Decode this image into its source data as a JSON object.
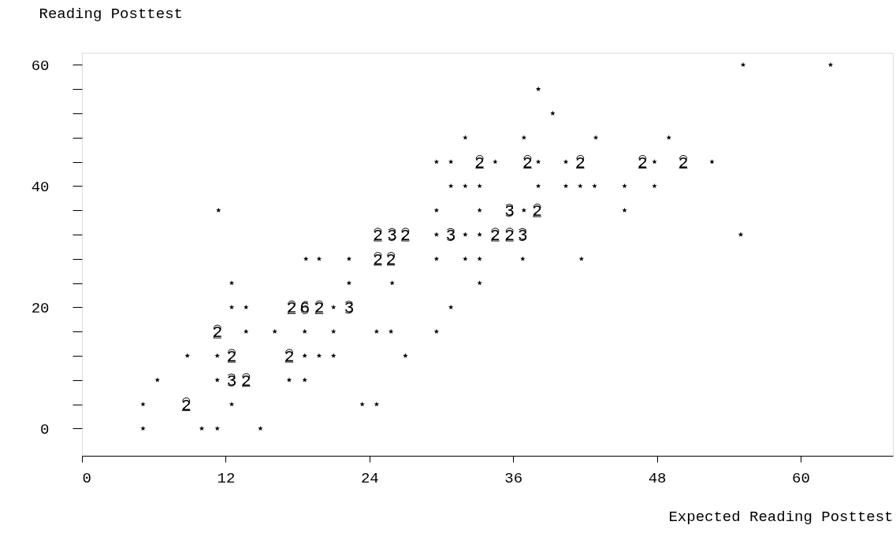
{
  "chart_data": {
    "type": "scatter",
    "xlabel": "Expected Reading Posttest",
    "ylabel": "Reading Posttest",
    "x": [
      55.2,
      62.5,
      38.1,
      39.3,
      32.0,
      36.9,
      42.9,
      49.0,
      29.6,
      30.8,
      34.5,
      38.1,
      40.4,
      47.8,
      52.6,
      30.8,
      32.0,
      33.2,
      38.1,
      40.4,
      41.6,
      42.8,
      45.3,
      47.8,
      11.4,
      29.6,
      33.2,
      36.9,
      45.3,
      29.6,
      32.0,
      33.2,
      55.0,
      18.7,
      19.8,
      22.3,
      29.6,
      32.0,
      33.2,
      36.8,
      41.7,
      12.5,
      22.3,
      25.9,
      33.2,
      12.5,
      13.7,
      21.0,
      30.8,
      13.7,
      16.1,
      18.6,
      21.0,
      24.6,
      25.8,
      29.6,
      8.8,
      11.3,
      18.6,
      19.8,
      21.0,
      27.0,
      6.3,
      11.3,
      17.3,
      18.6,
      5.1,
      12.5,
      23.4,
      24.6,
      5.1,
      10.0,
      11.3,
      14.9
    ],
    "series": [
      {
        "color": "#000000",
        "values": [
          60,
          60,
          56,
          52,
          48,
          48,
          48,
          48,
          44,
          44,
          44,
          44,
          44,
          44,
          44,
          40,
          40,
          40,
          40,
          40,
          40,
          40,
          40,
          40,
          36,
          36,
          36,
          36,
          36,
          32,
          32,
          32,
          32,
          28,
          28,
          28,
          28,
          28,
          28,
          28,
          28,
          24,
          24,
          24,
          24,
          20,
          20,
          20,
          20,
          16,
          16,
          16,
          16,
          16,
          16,
          16,
          12,
          12,
          12,
          12,
          12,
          12,
          8,
          8,
          8,
          8,
          4,
          4,
          4,
          4,
          0,
          0,
          0,
          0
        ]
      },
      {
        "color": "#000000",
        "marker": "cross",
        "x": [
          33.2,
          37.2,
          41.6,
          46.8,
          50.2,
          35.7,
          38.0,
          24.7,
          25.9,
          27.0,
          30.8,
          34.5,
          35.7,
          36.8,
          24.7,
          25.8,
          17.5,
          18.6,
          19.8,
          22.3,
          11.3,
          12.5,
          17.3,
          12.5,
          13.7,
          8.7
        ],
        "values": [
          44,
          44,
          44,
          44,
          44,
          36,
          36,
          32,
          32,
          32,
          32,
          32,
          32,
          32,
          28,
          28,
          20,
          20,
          20,
          20,
          16,
          12,
          12,
          8,
          8,
          4
        ]
      }
    ],
    "annotations": [
      {
        "text": "2",
        "x": 33.2,
        "y": 44
      },
      {
        "text": "2",
        "x": 37.2,
        "y": 44
      },
      {
        "text": "2",
        "x": 41.6,
        "y": 44
      },
      {
        "text": "2",
        "x": 46.8,
        "y": 44
      },
      {
        "text": "2",
        "x": 50.2,
        "y": 44
      },
      {
        "text": "3",
        "x": 35.7,
        "y": 36
      },
      {
        "text": "2",
        "x": 38.0,
        "y": 36
      },
      {
        "text": "2",
        "x": 24.7,
        "y": 32
      },
      {
        "text": "3",
        "x": 25.9,
        "y": 32
      },
      {
        "text": "2",
        "x": 27.0,
        "y": 32
      },
      {
        "text": "3",
        "x": 30.8,
        "y": 32
      },
      {
        "text": "2",
        "x": 34.5,
        "y": 32
      },
      {
        "text": "2",
        "x": 35.7,
        "y": 32
      },
      {
        "text": "3",
        "x": 36.8,
        "y": 32
      },
      {
        "text": "2",
        "x": 24.7,
        "y": 28
      },
      {
        "text": "2",
        "x": 25.8,
        "y": 28
      },
      {
        "text": "2",
        "x": 17.5,
        "y": 20
      },
      {
        "text": "6",
        "x": 18.6,
        "y": 20
      },
      {
        "text": "2",
        "x": 19.8,
        "y": 20
      },
      {
        "text": "3",
        "x": 22.3,
        "y": 20
      },
      {
        "text": "2",
        "x": 11.3,
        "y": 16
      },
      {
        "text": "2",
        "x": 12.5,
        "y": 12
      },
      {
        "text": "2",
        "x": 17.3,
        "y": 12
      },
      {
        "text": "3",
        "x": 12.5,
        "y": 8
      },
      {
        "text": "2",
        "x": 13.7,
        "y": 8
      },
      {
        "text": "2",
        "x": 8.7,
        "y": 4
      }
    ],
    "marker": "star",
    "xlim": [
      0,
      67.7
    ],
    "xticks": [
      0,
      12,
      24,
      36,
      48,
      60
    ],
    "ylim": [
      -4.5,
      62
    ],
    "yticks": [
      0,
      {
        "value": 4,
        "label": null
      },
      {
        "value": 8,
        "label": null
      },
      {
        "value": 12,
        "label": null
      },
      {
        "value": 16,
        "label": null
      },
      20,
      {
        "value": 24,
        "label": null
      },
      {
        "value": 28,
        "label": null
      },
      {
        "value": 32,
        "label": null
      },
      {
        "value": 36,
        "label": null
      },
      40,
      {
        "value": 44,
        "label": null
      },
      {
        "value": 48,
        "label": null
      },
      {
        "value": 52,
        "label": null
      },
      {
        "value": 56,
        "label": null
      },
      60
    ],
    "grid": false,
    "legend": false
  }
}
